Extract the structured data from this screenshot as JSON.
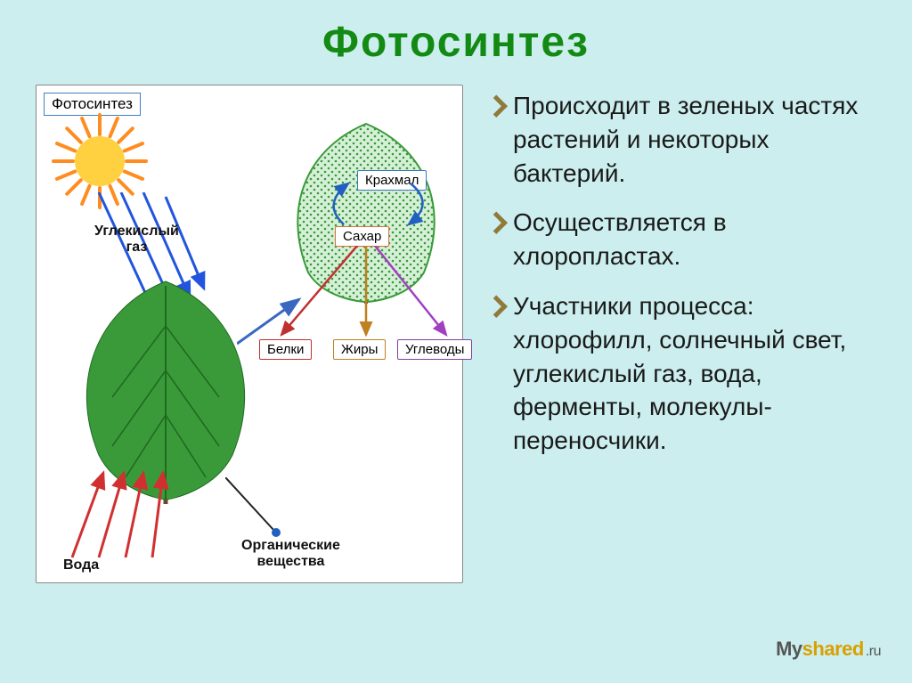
{
  "title": {
    "text": "Фотосинтез",
    "color": "#138a13"
  },
  "background_color": "#cceeee",
  "bullets": {
    "chevron_color": "#8f7a3a",
    "items": [
      "Происходит в зеленых частях растений и некоторых бактерий.",
      "Осуществляется в хлоропластах.",
      "Участники процесса: хлорофилл, солнечный свет, углекислый газ, вода, ферменты, молекулы-переносчики."
    ]
  },
  "diagram": {
    "panel_title": "Фотосинтез",
    "leaf_main_color": "#3a9a3a",
    "leaf_small_fill": "#d6f0d8",
    "leaf_small_dots": "#3a9a3a",
    "sun": {
      "core": "#ffd040",
      "ray": "#ff8c20"
    },
    "labels": {
      "co2": "Углекислый\nгаз",
      "water": "Вода",
      "organic": "Органические\nвещества",
      "starch": "Крахмал",
      "sugar": "Сахар",
      "proteins": "Белки",
      "fats": "Жиры",
      "carbs": "Углеводы"
    },
    "arrow_colors": {
      "light": "#2255dd",
      "water": "#d03030",
      "to_small_leaf": "#3a68c0",
      "starch_cycle": "#2060c0",
      "proteins": "#c03030",
      "fats": "#c08020",
      "carbs": "#a040c0"
    }
  },
  "watermark": {
    "my": "My",
    "shared": "shared",
    "ru": ".ru"
  }
}
